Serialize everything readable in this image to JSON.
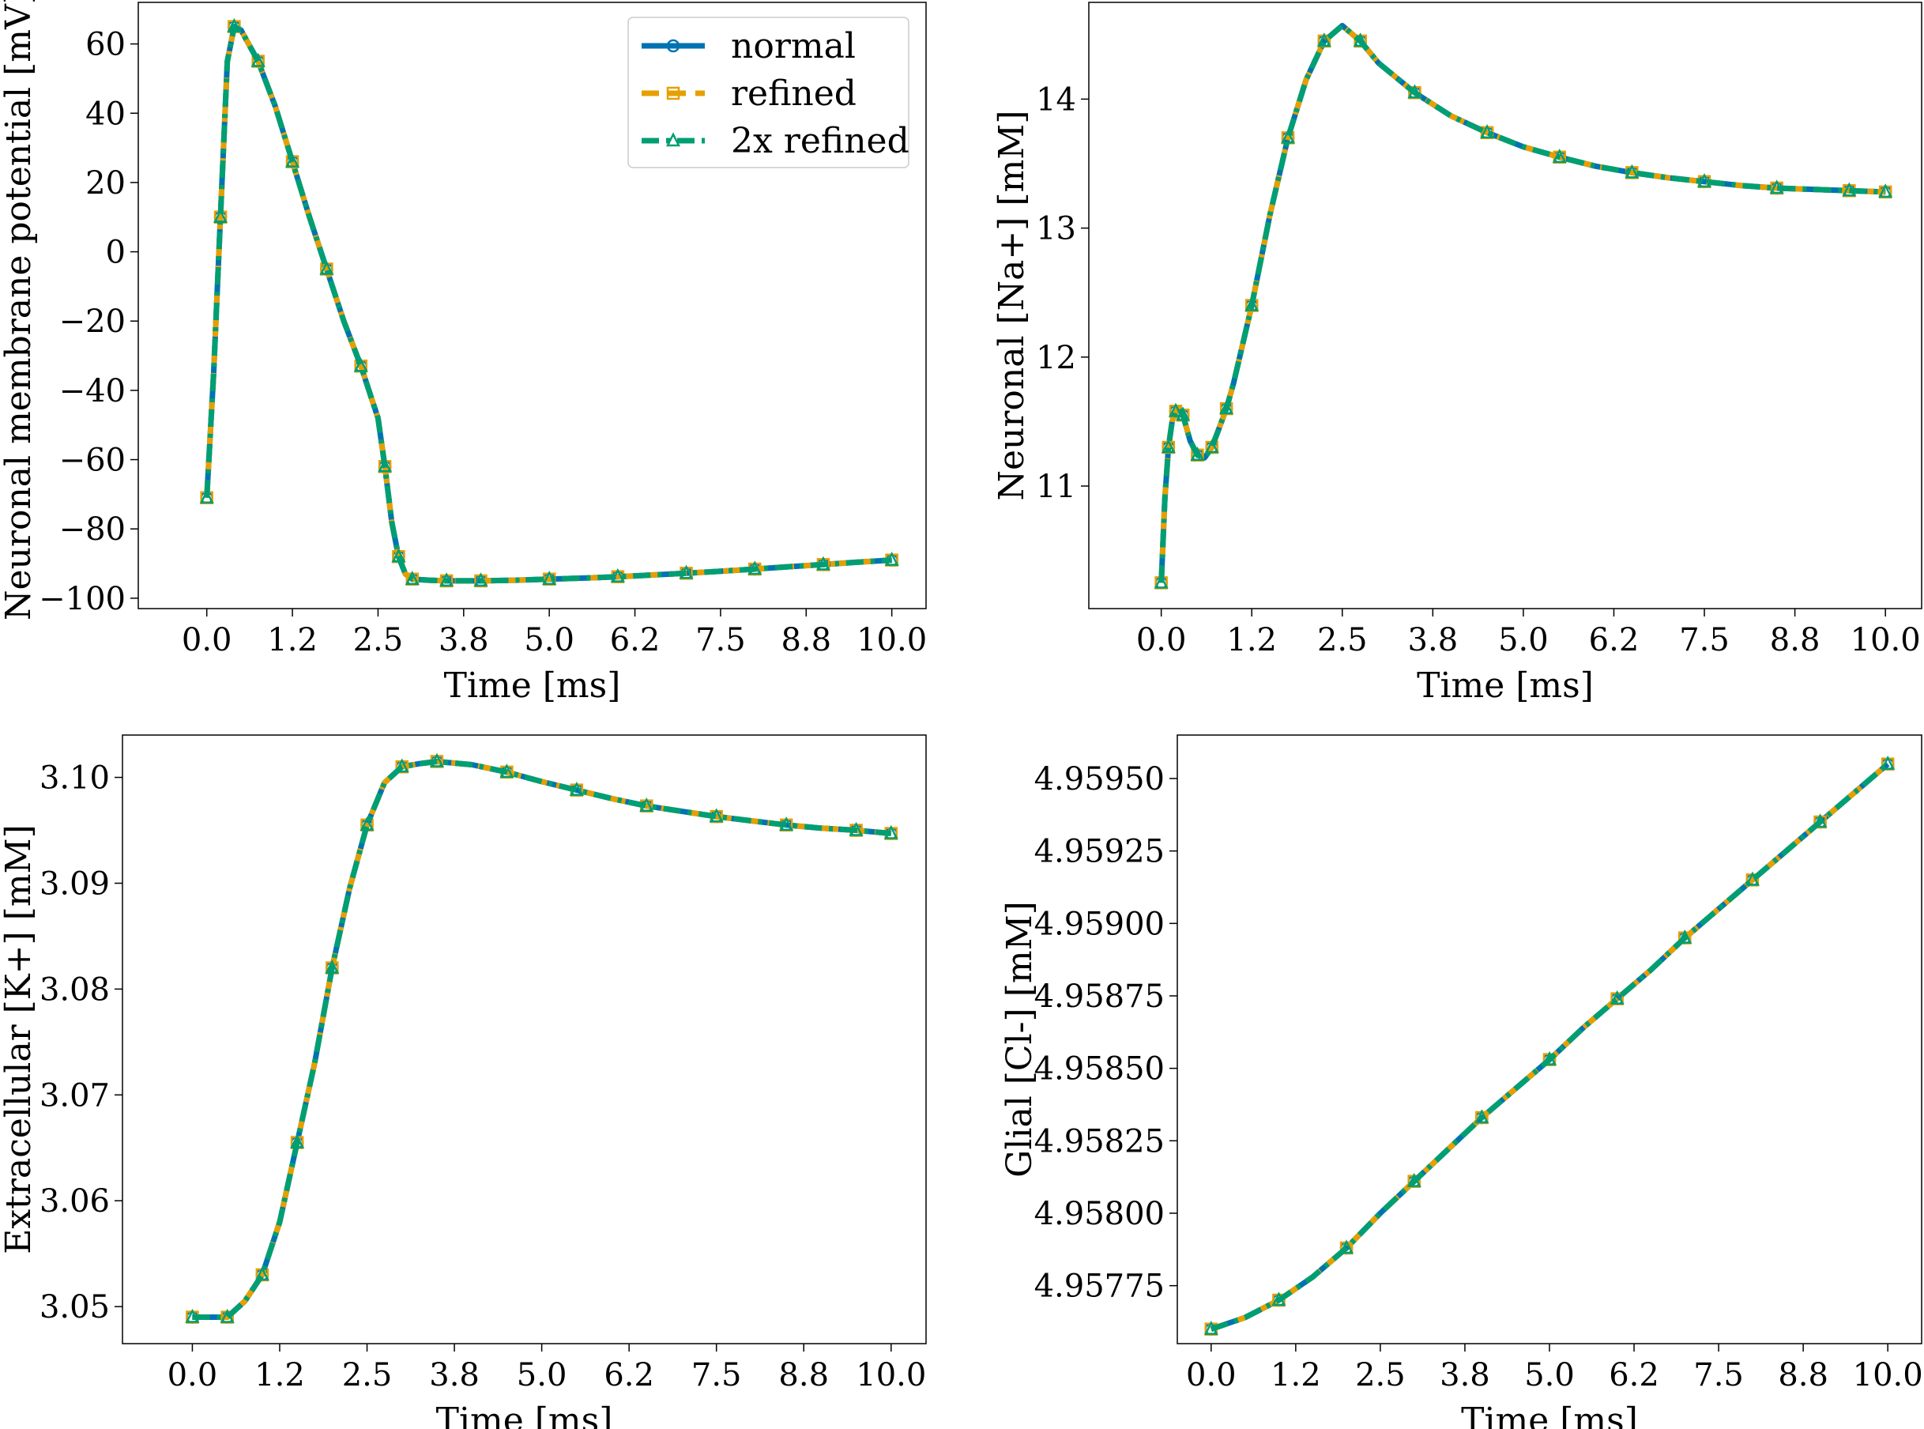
{
  "chart_data": [
    {
      "type": "line",
      "xlabel": "Time [ms]",
      "ylabel": "Neuronal membrane potential [mV]",
      "xlim": [
        -1.0,
        10.5
      ],
      "ylim": [
        -103.0,
        72.0
      ],
      "xticks": [
        0.0,
        1.25,
        2.5,
        3.75,
        5.0,
        6.25,
        7.5,
        8.75,
        10.0
      ],
      "xtick_labels": [
        "0.0",
        "1.2",
        "2.5",
        "3.8",
        "5.0",
        "6.2",
        "7.5",
        "8.8",
        "10.0"
      ],
      "yticks": [
        60,
        40,
        20,
        0,
        -20,
        -40,
        -60,
        -80,
        -100
      ],
      "ytick_labels": [
        "60",
        "40",
        "20",
        "0",
        "−20",
        "−40",
        "−60",
        "−80",
        "−100"
      ],
      "x": [
        0.0,
        0.1,
        0.2,
        0.3,
        0.4,
        0.5,
        0.75,
        1.0,
        1.25,
        1.5,
        1.75,
        2.0,
        2.25,
        2.5,
        2.6,
        2.7,
        2.8,
        2.9,
        3.0,
        3.25,
        3.5,
        3.75,
        4.0,
        4.5,
        5.0,
        5.5,
        6.0,
        6.5,
        7.0,
        7.5,
        8.0,
        8.5,
        9.0,
        9.5,
        10.0
      ],
      "series": [
        {
          "name": "normal",
          "values": [
            -71,
            -35,
            10,
            55,
            65,
            64,
            55,
            42,
            26,
            10,
            -5,
            -20,
            -33,
            -48,
            -62,
            -78,
            -88,
            -93,
            -94.5,
            -94.8,
            -95,
            -95,
            -95,
            -94.8,
            -94.5,
            -94.2,
            -93.8,
            -93.3,
            -92.8,
            -92.2,
            -91.6,
            -90.9,
            -90.3,
            -89.6,
            -89
          ]
        },
        {
          "name": "refined",
          "values": [
            -71,
            -35,
            10,
            55,
            65,
            64,
            55,
            42,
            26,
            10,
            -5,
            -20,
            -33,
            -48,
            -62,
            -78,
            -88,
            -93,
            -94.5,
            -94.8,
            -95,
            -95,
            -95,
            -94.8,
            -94.5,
            -94.2,
            -93.8,
            -93.3,
            -92.8,
            -92.2,
            -91.6,
            -90.9,
            -90.3,
            -89.6,
            -89
          ]
        },
        {
          "name": "2x refined",
          "values": [
            -71,
            -35,
            10,
            55,
            65,
            64,
            55,
            42,
            26,
            10,
            -5,
            -20,
            -33,
            -48,
            -62,
            -78,
            -88,
            -93,
            -94.5,
            -94.8,
            -95,
            -95,
            -95,
            -94.8,
            -94.5,
            -94.2,
            -93.8,
            -93.3,
            -92.8,
            -92.2,
            -91.6,
            -90.9,
            -90.3,
            -89.6,
            -89
          ]
        }
      ],
      "legend": "top-right",
      "grid": false
    },
    {
      "type": "line",
      "xlabel": "Time [ms]",
      "ylabel": "Neuronal [Na+] [mM]",
      "xlim": [
        -1.0,
        10.5
      ],
      "ylim": [
        10.05,
        14.75
      ],
      "xticks": [
        0.0,
        1.25,
        2.5,
        3.75,
        5.0,
        6.25,
        7.5,
        8.75,
        10.0
      ],
      "xtick_labels": [
        "0.0",
        "1.2",
        "2.5",
        "3.8",
        "5.0",
        "6.2",
        "7.5",
        "8.8",
        "10.0"
      ],
      "yticks": [
        14,
        13,
        12,
        11
      ],
      "ytick_labels": [
        "14",
        "13",
        "12",
        "11"
      ],
      "x": [
        0.0,
        0.05,
        0.1,
        0.15,
        0.2,
        0.25,
        0.3,
        0.4,
        0.5,
        0.6,
        0.7,
        0.8,
        0.9,
        1.0,
        1.25,
        1.5,
        1.75,
        2.0,
        2.25,
        2.5,
        2.75,
        3.0,
        3.5,
        4.0,
        4.5,
        5.0,
        5.5,
        6.0,
        6.5,
        7.0,
        7.5,
        8.0,
        8.5,
        9.0,
        9.5,
        10.0
      ],
      "series": [
        {
          "name": "normal",
          "values": [
            10.25,
            10.9,
            11.3,
            11.5,
            11.58,
            11.6,
            11.55,
            11.35,
            11.24,
            11.22,
            11.3,
            11.45,
            11.6,
            11.8,
            12.4,
            13.1,
            13.7,
            14.15,
            14.45,
            14.57,
            14.45,
            14.28,
            14.05,
            13.87,
            13.74,
            13.63,
            13.55,
            13.48,
            13.43,
            13.39,
            13.36,
            13.33,
            13.31,
            13.3,
            13.29,
            13.28
          ]
        },
        {
          "name": "refined",
          "values": [
            10.25,
            10.9,
            11.3,
            11.5,
            11.58,
            11.6,
            11.55,
            11.35,
            11.24,
            11.22,
            11.3,
            11.45,
            11.6,
            11.8,
            12.4,
            13.1,
            13.7,
            14.15,
            14.45,
            14.57,
            14.45,
            14.28,
            14.05,
            13.87,
            13.74,
            13.63,
            13.55,
            13.48,
            13.43,
            13.39,
            13.36,
            13.33,
            13.31,
            13.3,
            13.29,
            13.28
          ]
        },
        {
          "name": "2x refined",
          "values": [
            10.25,
            10.9,
            11.3,
            11.5,
            11.58,
            11.6,
            11.55,
            11.35,
            11.24,
            11.22,
            11.3,
            11.45,
            11.6,
            11.8,
            12.4,
            13.1,
            13.7,
            14.15,
            14.45,
            14.57,
            14.45,
            14.28,
            14.05,
            13.87,
            13.74,
            13.63,
            13.55,
            13.48,
            13.43,
            13.39,
            13.36,
            13.33,
            13.31,
            13.3,
            13.29,
            13.28
          ]
        }
      ],
      "grid": false
    },
    {
      "type": "line",
      "xlabel": "Time [ms]",
      "ylabel": "Extracellular [K+] [mM]",
      "xlim": [
        -1.0,
        10.5
      ],
      "ylim": [
        3.0465,
        3.104
      ],
      "xticks": [
        0.0,
        1.25,
        2.5,
        3.75,
        5.0,
        6.25,
        7.5,
        8.75,
        10.0
      ],
      "xtick_labels": [
        "0.0",
        "1.2",
        "2.5",
        "3.8",
        "5.0",
        "6.2",
        "7.5",
        "8.8",
        "10.0"
      ],
      "yticks": [
        3.1,
        3.09,
        3.08,
        3.07,
        3.06,
        3.05
      ],
      "ytick_labels": [
        "3.10",
        "3.09",
        "3.08",
        "3.07",
        "3.06",
        "3.05"
      ],
      "x": [
        0.0,
        0.25,
        0.5,
        0.75,
        1.0,
        1.25,
        1.5,
        1.75,
        2.0,
        2.25,
        2.5,
        2.75,
        3.0,
        3.25,
        3.5,
        4.0,
        4.5,
        5.0,
        5.5,
        6.0,
        6.5,
        7.0,
        7.5,
        8.0,
        8.5,
        9.0,
        9.5,
        10.0
      ],
      "series": [
        {
          "name": "normal",
          "values": [
            3.049,
            3.049,
            3.049,
            3.0505,
            3.053,
            3.058,
            3.0655,
            3.073,
            3.082,
            3.0895,
            3.0955,
            3.0995,
            3.101,
            3.1013,
            3.1015,
            3.1012,
            3.1005,
            3.0996,
            3.0988,
            3.098,
            3.0973,
            3.0968,
            3.0963,
            3.0959,
            3.0955,
            3.0952,
            3.095,
            3.0947
          ]
        },
        {
          "name": "refined",
          "values": [
            3.049,
            3.049,
            3.049,
            3.0505,
            3.053,
            3.058,
            3.0655,
            3.073,
            3.082,
            3.0895,
            3.0955,
            3.0995,
            3.101,
            3.1013,
            3.1015,
            3.1012,
            3.1005,
            3.0996,
            3.0988,
            3.098,
            3.0973,
            3.0968,
            3.0963,
            3.0959,
            3.0955,
            3.0952,
            3.095,
            3.0947
          ]
        },
        {
          "name": "2x refined",
          "values": [
            3.049,
            3.049,
            3.049,
            3.0505,
            3.053,
            3.058,
            3.0655,
            3.073,
            3.082,
            3.0895,
            3.0955,
            3.0995,
            3.101,
            3.1013,
            3.1015,
            3.1012,
            3.1005,
            3.0996,
            3.0988,
            3.098,
            3.0973,
            3.0968,
            3.0963,
            3.0959,
            3.0955,
            3.0952,
            3.095,
            3.0947
          ]
        }
      ],
      "grid": false
    },
    {
      "type": "line",
      "xlabel": "Time [ms]",
      "ylabel": "Glial [Cl-] [mM]",
      "xlim": [
        -0.5,
        10.5
      ],
      "ylim": [
        4.95755,
        4.95965
      ],
      "xticks": [
        0.0,
        1.25,
        2.5,
        3.75,
        5.0,
        6.25,
        7.5,
        8.75,
        10.0
      ],
      "xtick_labels": [
        "0.0",
        "1.2",
        "2.5",
        "3.8",
        "5.0",
        "6.2",
        "7.5",
        "8.8",
        "10.0"
      ],
      "yticks": [
        4.9595,
        4.95925,
        4.959,
        4.95875,
        4.9585,
        4.95825,
        4.958,
        4.95775
      ],
      "ytick_labels": [
        "4.95950",
        "4.95925",
        "4.95900",
        "4.95875",
        "4.95850",
        "4.95825",
        "4.95800",
        "4.95775"
      ],
      "x": [
        0.0,
        0.5,
        1.0,
        1.5,
        2.0,
        2.5,
        3.0,
        3.5,
        4.0,
        4.5,
        5.0,
        5.5,
        6.0,
        6.5,
        7.0,
        7.5,
        8.0,
        8.5,
        9.0,
        9.5,
        10.0
      ],
      "series": [
        {
          "name": "normal",
          "values": [
            4.9576,
            4.95764,
            4.9577,
            4.95778,
            4.95788,
            4.958,
            4.95811,
            4.95822,
            4.95833,
            4.95843,
            4.95853,
            4.95864,
            4.95874,
            4.95884,
            4.95895,
            4.95905,
            4.95915,
            4.95925,
            4.95935,
            4.95945,
            4.95955
          ]
        },
        {
          "name": "refined",
          "values": [
            4.9576,
            4.95764,
            4.9577,
            4.95778,
            4.95788,
            4.958,
            4.95811,
            4.95822,
            4.95833,
            4.95843,
            4.95853,
            4.95864,
            4.95874,
            4.95884,
            4.95895,
            4.95905,
            4.95915,
            4.95925,
            4.95935,
            4.95945,
            4.95955
          ]
        },
        {
          "name": "2x refined",
          "values": [
            4.9576,
            4.95764,
            4.9577,
            4.95778,
            4.95788,
            4.958,
            4.95811,
            4.95822,
            4.95833,
            4.95843,
            4.95853,
            4.95864,
            4.95874,
            4.95884,
            4.95895,
            4.95905,
            4.95915,
            4.95925,
            4.95935,
            4.95945,
            4.95955
          ]
        }
      ],
      "grid": false
    }
  ],
  "series_colors": [
    "#0072B2",
    "#E69F00",
    "#009E73"
  ],
  "series_markers": [
    "circle",
    "square",
    "triangle"
  ],
  "series_dashes": [
    "solid",
    "dashed",
    "dashdot"
  ]
}
